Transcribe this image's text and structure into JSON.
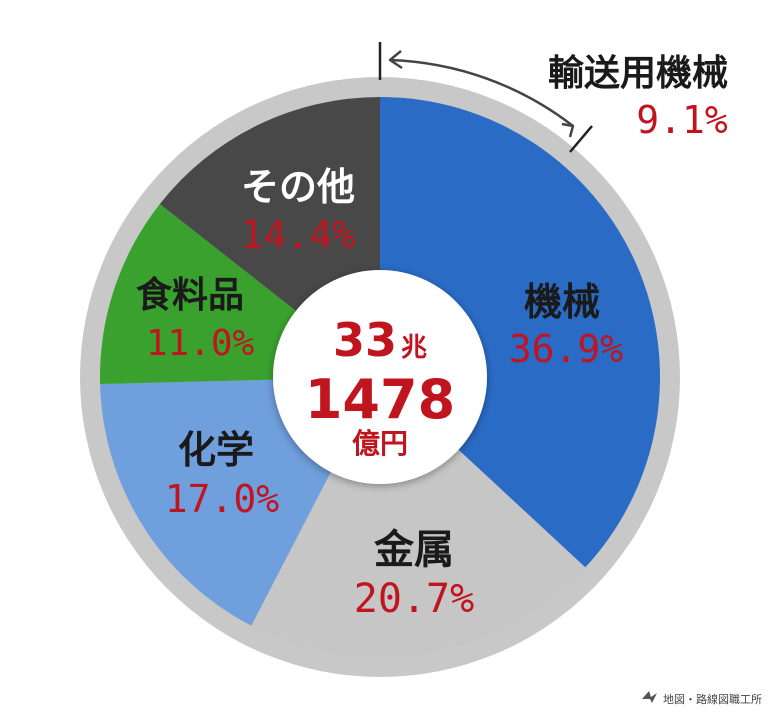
{
  "chart_data": {
    "type": "pie",
    "title": "",
    "total": {
      "main": "33",
      "unit1": "兆",
      "sub": "1478",
      "unit2": "億円"
    },
    "slices": [
      {
        "label": "機械",
        "value": 36.9,
        "display": "36.9%",
        "color": "#2a6bc6"
      },
      {
        "label": "金属",
        "value": 20.7,
        "display": "20.7%",
        "color": "#c6c6c6"
      },
      {
        "label": "化学",
        "value": 17.0,
        "display": "17.0%",
        "color": "#6f9fdc"
      },
      {
        "label": "食料品",
        "value": 11.0,
        "display": "11.0%",
        "color": "#3aa12e"
      },
      {
        "label": "その他",
        "value": 14.4,
        "display": "14.4%",
        "color": "#484848"
      }
    ],
    "sub_slice": {
      "label": "輸送用機械",
      "value": 9.1,
      "display": "9.1%",
      "parent": "機械"
    },
    "legend": "none"
  },
  "credit": "地図・路線図職工所",
  "colors": {
    "ring": "#c8c8c8",
    "value_text": "#c0141e",
    "label_text": "#1a1a1a"
  }
}
